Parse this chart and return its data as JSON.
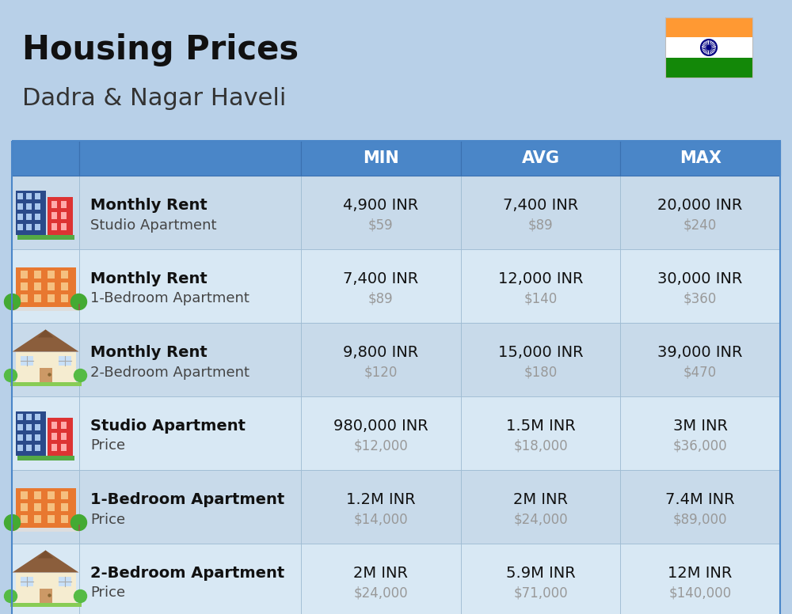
{
  "title": "Housing Prices",
  "subtitle": "Dadra & Nagar Haveli",
  "bg_color": "#b8d0e8",
  "header_bg": "#4a86c8",
  "header_text_color": "#ffffff",
  "row_bg_even": "#c8daea",
  "row_bg_odd": "#d8e8f4",
  "title_color": "#111111",
  "subtitle_color": "#333333",
  "value_color": "#111111",
  "usd_color": "#999999",
  "columns": [
    "MIN",
    "AVG",
    "MAX"
  ],
  "rows": [
    {
      "label_bold": "Monthly Rent",
      "label_sub": "Studio Apartment",
      "icon_type": "blue_red_tall",
      "min_inr": "4,900 INR",
      "min_usd": "$59",
      "avg_inr": "7,400 INR",
      "avg_usd": "$89",
      "max_inr": "20,000 INR",
      "max_usd": "$240"
    },
    {
      "label_bold": "Monthly Rent",
      "label_sub": "1-Bedroom Apartment",
      "icon_type": "orange_wide_trees",
      "min_inr": "7,400 INR",
      "min_usd": "$89",
      "avg_inr": "12,000 INR",
      "avg_usd": "$140",
      "max_inr": "30,000 INR",
      "max_usd": "$360"
    },
    {
      "label_bold": "Monthly Rent",
      "label_sub": "2-Bedroom Apartment",
      "icon_type": "beige_house",
      "min_inr": "9,800 INR",
      "min_usd": "$120",
      "avg_inr": "15,000 INR",
      "avg_usd": "$180",
      "max_inr": "39,000 INR",
      "max_usd": "$470"
    },
    {
      "label_bold": "Studio Apartment",
      "label_sub": "Price",
      "icon_type": "blue_red_tall",
      "min_inr": "980,000 INR",
      "min_usd": "$12,000",
      "avg_inr": "1.5M INR",
      "avg_usd": "$18,000",
      "max_inr": "3M INR",
      "max_usd": "$36,000"
    },
    {
      "label_bold": "1-Bedroom Apartment",
      "label_sub": "Price",
      "icon_type": "orange_wide_trees",
      "min_inr": "1.2M INR",
      "min_usd": "$14,000",
      "avg_inr": "2M INR",
      "avg_usd": "$24,000",
      "max_inr": "7.4M INR",
      "max_usd": "$89,000"
    },
    {
      "label_bold": "2-Bedroom Apartment",
      "label_sub": "Price",
      "icon_type": "beige_house",
      "min_inr": "2M INR",
      "min_usd": "$24,000",
      "avg_inr": "5.9M INR",
      "avg_usd": "$71,000",
      "max_inr": "12M INR",
      "max_usd": "$140,000"
    }
  ],
  "flag_colors": {
    "top": "#FF9933",
    "mid": "#FFFFFF",
    "bot": "#138808",
    "chakra": "#000080"
  },
  "fig_width": 10.0,
  "fig_height": 7.76,
  "dpi": 100
}
